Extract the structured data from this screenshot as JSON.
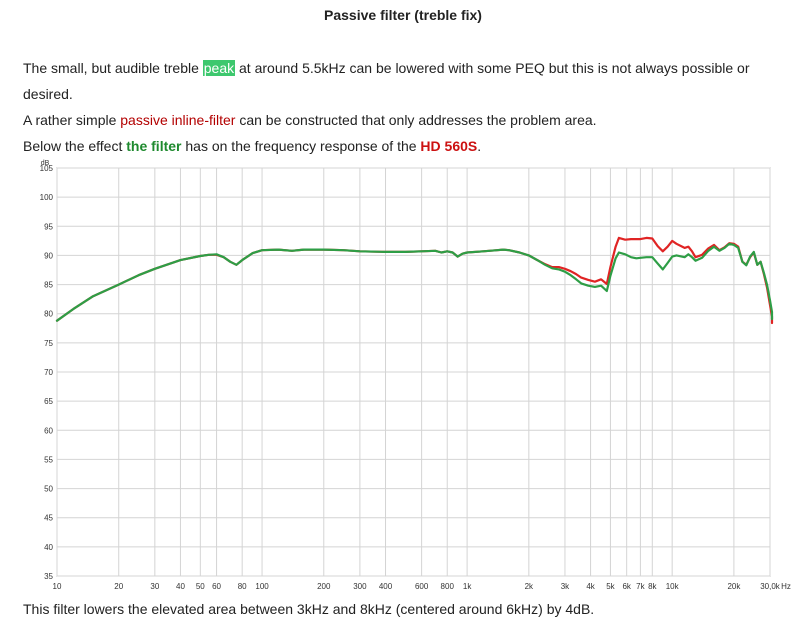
{
  "page": {
    "title": "Passive filter (treble fix)",
    "p1": {
      "before": "The small, but audible treble ",
      "highlight": "peak",
      "after": " at around 5.5kHz can be lowered with some PEQ but this is not always possible or"
    },
    "p1_cont": "desired.",
    "p2": {
      "before": "A rather simple ",
      "link": "passive inline-filter",
      "after": " can be constructed that only addresses the problem area."
    },
    "p3": {
      "before": "Below the effect ",
      "filter": "the filter",
      "middle": " has on the frequency response of the ",
      "model": "HD 560S",
      "after": "."
    },
    "caption": "This filter lowers the elevated area between 3kHz and 8kHz (centered around 6kHz) by 4dB."
  },
  "chart_data": {
    "type": "line",
    "title": "",
    "xlabel": "",
    "ylabel": "dB",
    "x_scale": "log",
    "xlim": [
      10,
      30000
    ],
    "ylim": [
      35,
      105
    ],
    "grid": true,
    "x_units_label": "Hz",
    "x_ticks": [
      10,
      20,
      30,
      40,
      50,
      60,
      80,
      100,
      200,
      300,
      400,
      600,
      800,
      1000,
      2000,
      3000,
      4000,
      5000,
      6000,
      7000,
      8000,
      10000,
      20000,
      30000
    ],
    "x_tick_labels": [
      "10",
      "20",
      "30",
      "40",
      "50",
      "60",
      "80",
      "100",
      "200",
      "300",
      "400",
      "600",
      "800",
      "1k",
      "2k",
      "3k",
      "4k",
      "5k",
      "6k",
      "7k",
      "8k",
      "10k",
      "20k",
      "30,0k"
    ],
    "y_ticks": [
      35,
      40,
      45,
      50,
      55,
      60,
      65,
      70,
      75,
      80,
      85,
      90,
      95,
      100,
      105
    ],
    "series": [
      {
        "color": "#e02424",
        "points": [
          [
            10,
            78.8
          ],
          [
            12,
            80.8
          ],
          [
            15,
            83
          ],
          [
            20,
            85
          ],
          [
            25,
            86.6
          ],
          [
            30,
            87.7
          ],
          [
            40,
            89.2
          ],
          [
            50,
            89.9
          ],
          [
            55,
            90.1
          ],
          [
            60,
            90.1
          ],
          [
            65,
            89.7
          ],
          [
            70,
            88.9
          ],
          [
            75,
            88.4
          ],
          [
            80,
            89.2
          ],
          [
            90,
            90.4
          ],
          [
            100,
            90.9
          ],
          [
            120,
            91
          ],
          [
            140,
            90.8
          ],
          [
            160,
            91
          ],
          [
            200,
            91
          ],
          [
            250,
            90.9
          ],
          [
            300,
            90.7
          ],
          [
            400,
            90.6
          ],
          [
            500,
            90.6
          ],
          [
            600,
            90.7
          ],
          [
            700,
            90.8
          ],
          [
            750,
            90.5
          ],
          [
            800,
            90.7
          ],
          [
            850,
            90.5
          ],
          [
            900,
            89.8
          ],
          [
            950,
            90.3
          ],
          [
            1000,
            90.5
          ],
          [
            1200,
            90.7
          ],
          [
            1400,
            90.9
          ],
          [
            1500,
            91
          ],
          [
            1600,
            90.9
          ],
          [
            1800,
            90.5
          ],
          [
            2000,
            90
          ],
          [
            2200,
            89.2
          ],
          [
            2400,
            88.5
          ],
          [
            2600,
            88
          ],
          [
            2800,
            88
          ],
          [
            3000,
            87.7
          ],
          [
            3200,
            87.3
          ],
          [
            3400,
            86.8
          ],
          [
            3600,
            86.2
          ],
          [
            3900,
            85.8
          ],
          [
            4200,
            85.5
          ],
          [
            4500,
            85.9
          ],
          [
            4800,
            85.1
          ],
          [
            5000,
            88
          ],
          [
            5300,
            91.5
          ],
          [
            5500,
            93
          ],
          [
            5900,
            92.7
          ],
          [
            6300,
            92.8
          ],
          [
            6700,
            92.8
          ],
          [
            7000,
            92.8
          ],
          [
            7500,
            93
          ],
          [
            8000,
            92.9
          ],
          [
            8500,
            91.6
          ],
          [
            9000,
            90.7
          ],
          [
            9500,
            91.5
          ],
          [
            10000,
            92.5
          ],
          [
            10500,
            92
          ],
          [
            11500,
            91.3
          ],
          [
            12000,
            91.5
          ],
          [
            12500,
            90.7
          ],
          [
            13000,
            89.7
          ],
          [
            14000,
            90.1
          ],
          [
            15000,
            91.2
          ],
          [
            16000,
            91.8
          ],
          [
            17000,
            90.9
          ],
          [
            18000,
            91.4
          ],
          [
            19000,
            92.1
          ],
          [
            20000,
            92
          ],
          [
            21000,
            91.5
          ],
          [
            22000,
            88.9
          ],
          [
            23000,
            88.4
          ],
          [
            24000,
            89.7
          ],
          [
            25000,
            90.5
          ],
          [
            26000,
            88.4
          ],
          [
            27000,
            88.9
          ],
          [
            28000,
            86.8
          ],
          [
            29000,
            84.5
          ],
          [
            30000,
            81.5
          ],
          [
            31000,
            79.5
          ],
          [
            32000,
            78.4
          ]
        ]
      },
      {
        "color": "#2e9e46",
        "points": [
          [
            10,
            78.8
          ],
          [
            12,
            80.8
          ],
          [
            15,
            83
          ],
          [
            20,
            85
          ],
          [
            25,
            86.6
          ],
          [
            30,
            87.7
          ],
          [
            40,
            89.2
          ],
          [
            50,
            89.9
          ],
          [
            55,
            90.1
          ],
          [
            60,
            90.2
          ],
          [
            65,
            89.7
          ],
          [
            70,
            88.9
          ],
          [
            75,
            88.4
          ],
          [
            80,
            89.2
          ],
          [
            90,
            90.4
          ],
          [
            100,
            90.9
          ],
          [
            120,
            91
          ],
          [
            140,
            90.8
          ],
          [
            160,
            91
          ],
          [
            200,
            91
          ],
          [
            250,
            90.9
          ],
          [
            300,
            90.7
          ],
          [
            400,
            90.6
          ],
          [
            500,
            90.6
          ],
          [
            600,
            90.7
          ],
          [
            700,
            90.8
          ],
          [
            750,
            90.5
          ],
          [
            800,
            90.7
          ],
          [
            850,
            90.5
          ],
          [
            900,
            89.8
          ],
          [
            950,
            90.3
          ],
          [
            1000,
            90.5
          ],
          [
            1200,
            90.7
          ],
          [
            1400,
            90.9
          ],
          [
            1500,
            91
          ],
          [
            1600,
            90.9
          ],
          [
            1800,
            90.5
          ],
          [
            2000,
            90
          ],
          [
            2200,
            89.2
          ],
          [
            2400,
            88.4
          ],
          [
            2600,
            87.8
          ],
          [
            2800,
            87.6
          ],
          [
            3000,
            87.2
          ],
          [
            3200,
            86.6
          ],
          [
            3400,
            85.9
          ],
          [
            3600,
            85.2
          ],
          [
            3900,
            84.8
          ],
          [
            4200,
            84.6
          ],
          [
            4500,
            84.8
          ],
          [
            4800,
            83.9
          ],
          [
            5000,
            86.5
          ],
          [
            5300,
            89.5
          ],
          [
            5500,
            90.5
          ],
          [
            5900,
            90.2
          ],
          [
            6300,
            89.7
          ],
          [
            6700,
            89.5
          ],
          [
            7000,
            89.6
          ],
          [
            7500,
            89.7
          ],
          [
            8000,
            89.7
          ],
          [
            8500,
            88.6
          ],
          [
            9000,
            87.6
          ],
          [
            9500,
            88.7
          ],
          [
            10000,
            89.8
          ],
          [
            10500,
            90
          ],
          [
            11500,
            89.7
          ],
          [
            12000,
            90.2
          ],
          [
            12500,
            89.7
          ],
          [
            13000,
            89.1
          ],
          [
            14000,
            89.6
          ],
          [
            15000,
            90.8
          ],
          [
            16000,
            91.5
          ],
          [
            17000,
            90.8
          ],
          [
            18000,
            91.3
          ],
          [
            19000,
            92
          ],
          [
            20000,
            91.8
          ],
          [
            21000,
            91.3
          ],
          [
            22000,
            88.9
          ],
          [
            23000,
            88.3
          ],
          [
            24000,
            89.8
          ],
          [
            25000,
            90.6
          ],
          [
            26000,
            88.4
          ],
          [
            27000,
            88.9
          ],
          [
            28000,
            87
          ],
          [
            29000,
            85
          ],
          [
            30000,
            82.3
          ],
          [
            31000,
            80.3
          ],
          [
            32000,
            79.1
          ]
        ]
      }
    ]
  }
}
